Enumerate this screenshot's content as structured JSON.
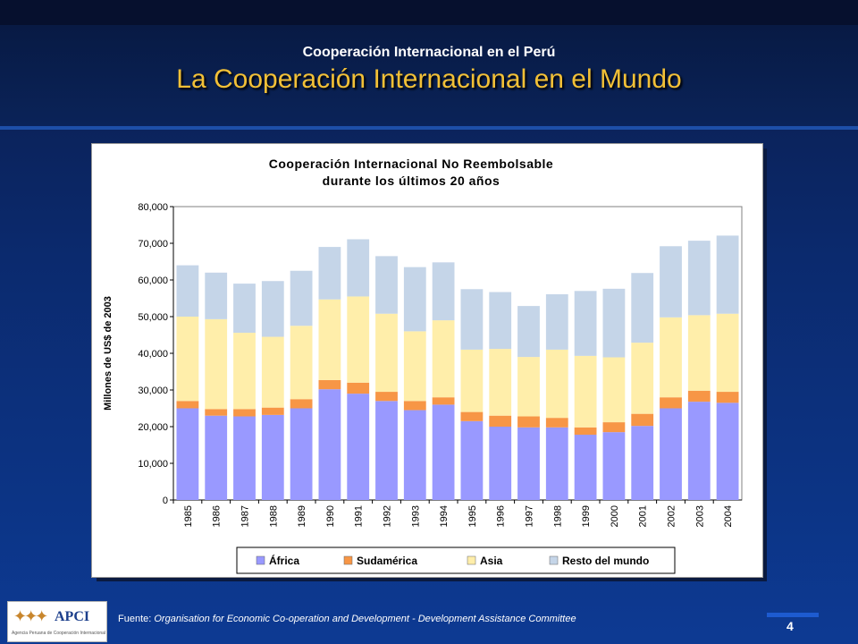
{
  "slide": {
    "subtitle": "Cooperación Internacional en el Perú",
    "title": "La Cooperación Internacional en el Mundo",
    "source_label": "Fuente:",
    "source_text": "Organisation for Economic Co-operation  and Development - Development Assistance Committee",
    "page_number": "4",
    "logo_text": "APCI",
    "logo_subtext": "Agencia Peruana de Cooperación Internacional",
    "colors": {
      "title": "#f2c037",
      "subtitle": "#ffffff",
      "background": "#0b2a6e"
    }
  },
  "chart_data": {
    "type": "bar",
    "stacked": true,
    "title_lines": [
      "Cooperación Internacional No Reembolsable",
      "durante los últimos 20 años"
    ],
    "ylabel": "Millones de US$ de 2003",
    "xlabel": "",
    "ylim": [
      0,
      80000
    ],
    "yticks": [
      0,
      10000,
      20000,
      30000,
      40000,
      50000,
      60000,
      70000,
      80000
    ],
    "ytick_labels": [
      "0",
      "10,000",
      "20,000",
      "30,000",
      "40,000",
      "50,000",
      "60,000",
      "70,000",
      "80,000"
    ],
    "grid": false,
    "legend_position": "bottom",
    "categories": [
      "1985",
      "1986",
      "1987",
      "1988",
      "1989",
      "1990",
      "1991",
      "1992",
      "1993",
      "1994",
      "1995",
      "1996",
      "1997",
      "1998",
      "1999",
      "2000",
      "2001",
      "2002",
      "2003",
      "2004"
    ],
    "series": [
      {
        "name": "África",
        "color": "#9999ff",
        "values": [
          25000,
          23000,
          22800,
          23200,
          25000,
          30200,
          29000,
          27000,
          24500,
          26000,
          21500,
          20000,
          19800,
          19800,
          17800,
          18500,
          20200,
          25000,
          26800,
          26500
        ]
      },
      {
        "name": "Sudamérica",
        "color": "#f79646",
        "values": [
          2000,
          1800,
          2000,
          2000,
          2500,
          2500,
          3000,
          2500,
          2500,
          2000,
          2500,
          3000,
          3000,
          2600,
          2000,
          2700,
          3300,
          3000,
          3000,
          3000
        ]
      },
      {
        "name": "Asia",
        "color": "#ffeeaa",
        "values": [
          23000,
          24500,
          20800,
          19300,
          20000,
          22000,
          23500,
          21300,
          19000,
          21000,
          17000,
          18200,
          16200,
          18600,
          19500,
          17700,
          19400,
          21800,
          20600,
          21300
        ]
      },
      {
        "name": "Resto del mundo",
        "color": "#c5d5e8",
        "values": [
          14000,
          12700,
          13400,
          15200,
          15000,
          14300,
          15600,
          15700,
          17500,
          15800,
          16500,
          15500,
          13900,
          15100,
          17700,
          18700,
          19000,
          19400,
          20300,
          21300
        ]
      }
    ]
  }
}
